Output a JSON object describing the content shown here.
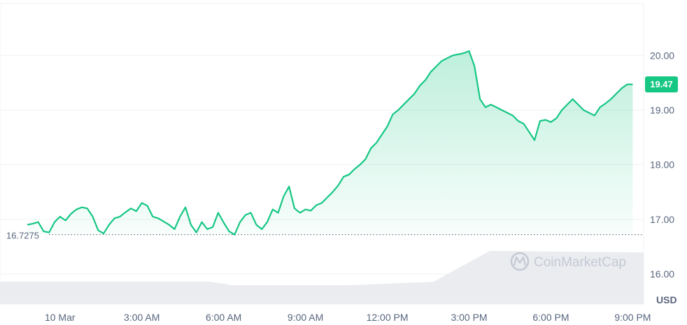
{
  "chart_data": {
    "type": "area",
    "y_axis": {
      "ticks": [
        "16.00",
        "17.00",
        "18.00",
        "19.00",
        "20.00"
      ],
      "range": [
        15.45,
        20.95
      ],
      "unit": "USD"
    },
    "x_axis": {
      "ticks": [
        {
          "label": "10 Mar",
          "t": 0
        },
        {
          "label": "3:00 AM",
          "t": 3
        },
        {
          "label": "6:00 AM",
          "t": 6
        },
        {
          "label": "9:00 AM",
          "t": 9
        },
        {
          "label": "12:00 PM",
          "t": 12
        },
        {
          "label": "3:00 PM",
          "t": 15
        },
        {
          "label": "6:00 PM",
          "t": 18
        },
        {
          "label": "9:00 PM",
          "t": 21
        }
      ],
      "range": [
        -2.2,
        21.4
      ]
    },
    "reference_price": {
      "value": 16.72,
      "label": "16.7275"
    },
    "current_price": {
      "value": 19.47,
      "label": "19.47"
    },
    "watermark": "CoinMarketCap",
    "colors": {
      "up": "#16c784",
      "down": "#ea3943",
      "grid": "#eff2f5",
      "text": "#58667e",
      "volume": "#eaecef"
    },
    "series": [
      {
        "x": [
          -1.2,
          -1.0,
          -0.8,
          -0.6,
          -0.4,
          -0.2,
          0.0,
          0.2,
          0.4,
          0.6,
          0.8,
          1.0,
          1.2,
          1.4,
          1.6,
          1.8,
          2.0,
          2.2,
          2.4,
          2.6,
          2.8,
          3.0,
          3.2,
          3.4,
          3.6,
          3.8,
          4.0,
          4.2,
          4.4,
          4.6,
          4.8,
          5.0,
          5.2,
          5.4,
          5.6,
          5.8,
          6.0,
          6.2,
          6.4,
          6.6,
          6.8,
          7.0,
          7.2,
          7.4,
          7.6,
          7.8,
          8.0,
          8.2,
          8.4,
          8.6,
          8.8,
          9.0,
          9.2,
          9.4,
          9.6,
          9.8,
          10.0,
          10.2,
          10.4,
          10.6,
          10.8,
          11.0,
          11.2,
          11.4,
          11.6,
          11.8,
          12.0,
          12.2,
          12.4,
          12.6,
          12.8,
          13.0,
          13.2,
          13.4,
          13.6,
          13.8,
          14.0,
          14.2,
          14.4,
          14.6,
          14.8,
          14.9,
          15.0,
          15.2,
          15.4,
          15.6,
          15.8,
          16.0,
          16.2,
          16.4,
          16.6,
          16.8,
          17.0,
          17.2,
          17.4,
          17.6,
          17.8,
          18.0,
          18.2,
          18.4,
          18.6,
          18.8,
          19.0,
          19.2,
          19.4,
          19.6,
          19.8,
          20.0,
          20.2,
          20.4,
          20.6,
          20.8,
          21.0
        ],
        "y": [
          16.9,
          16.92,
          16.95,
          16.78,
          16.76,
          16.95,
          17.05,
          16.98,
          17.1,
          17.18,
          17.22,
          17.2,
          17.05,
          16.8,
          16.74,
          16.9,
          17.02,
          17.05,
          17.13,
          17.2,
          17.15,
          17.3,
          17.25,
          17.05,
          17.02,
          16.96,
          16.9,
          16.82,
          17.05,
          17.22,
          16.9,
          16.76,
          16.95,
          16.82,
          16.86,
          17.12,
          16.94,
          16.78,
          16.72,
          16.95,
          17.08,
          17.12,
          16.9,
          16.82,
          16.95,
          17.18,
          17.12,
          17.42,
          17.6,
          17.2,
          17.12,
          17.18,
          17.16,
          17.26,
          17.3,
          17.4,
          17.5,
          17.62,
          17.78,
          17.82,
          17.92,
          18.0,
          18.1,
          18.3,
          18.4,
          18.55,
          18.7,
          18.92,
          19.0,
          19.1,
          19.2,
          19.3,
          19.45,
          19.55,
          19.7,
          19.8,
          19.9,
          19.95,
          20.0,
          20.02,
          20.04,
          20.06,
          20.08,
          19.8,
          19.2,
          19.05,
          19.1,
          19.05,
          19.0,
          18.95,
          18.9,
          18.8,
          18.75,
          18.6,
          18.45,
          18.8,
          18.82,
          18.78,
          18.85,
          19.0,
          19.1,
          19.2,
          19.1,
          19.0,
          18.95,
          18.9,
          19.05,
          19.12,
          19.2,
          19.3,
          19.4,
          19.47,
          19.47
        ],
        "name": ""
      }
    ]
  }
}
